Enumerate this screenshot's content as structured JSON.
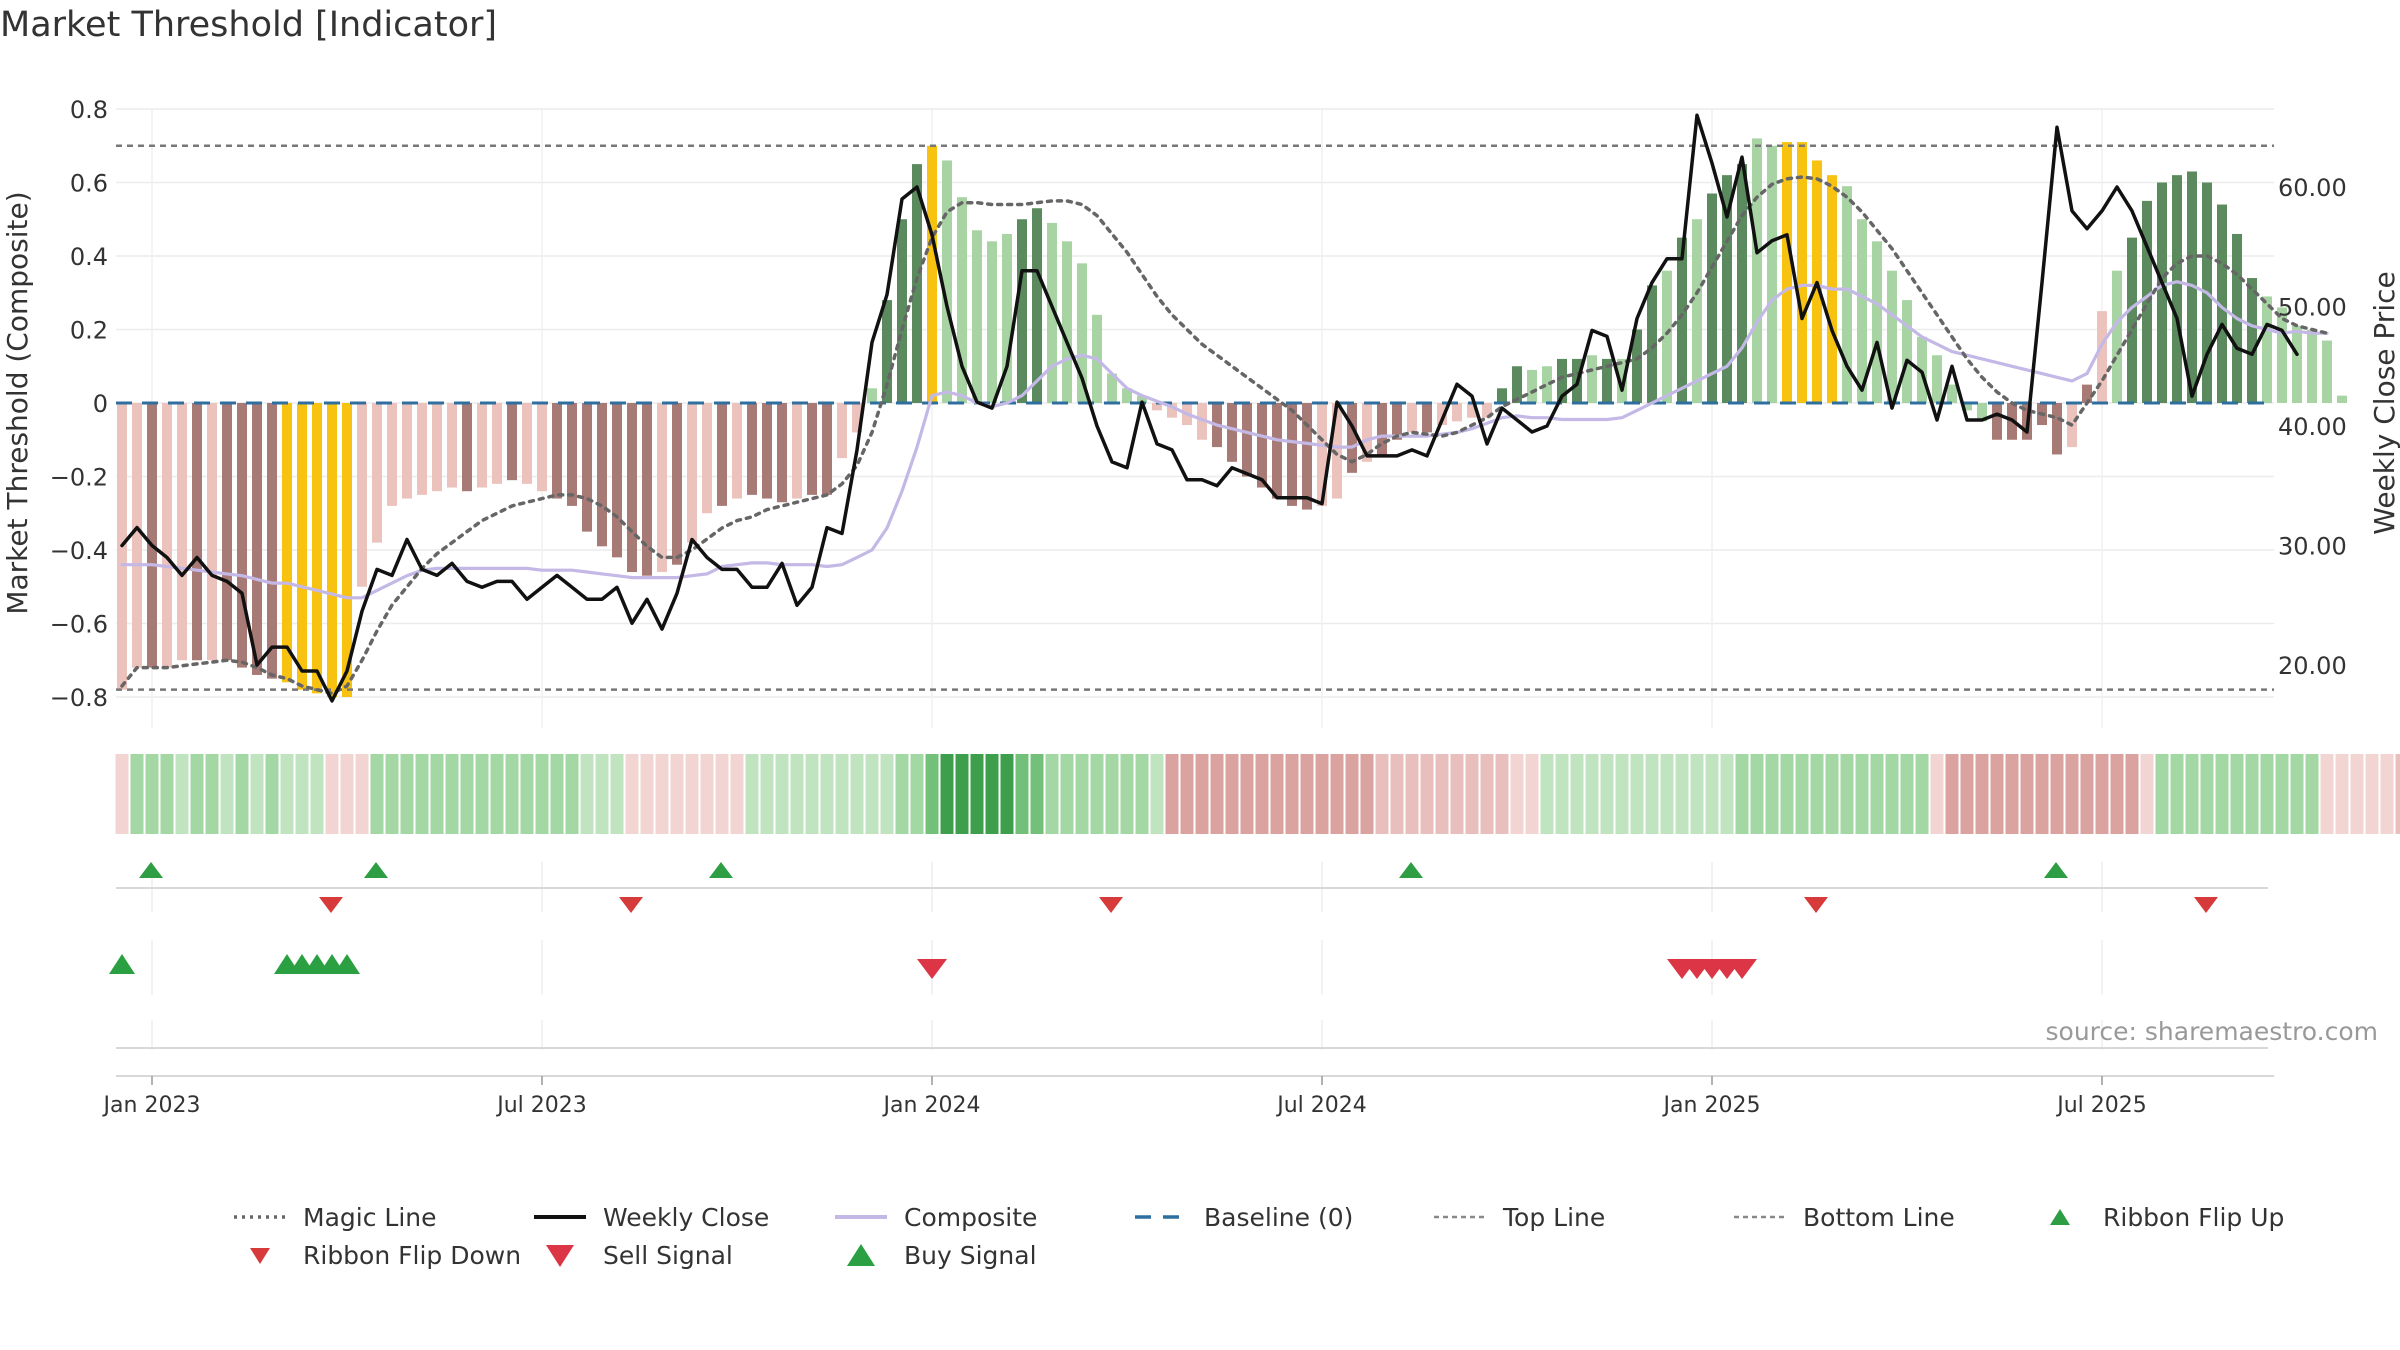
{
  "title": "Market Threshold [Indicator]",
  "source": "source: sharemaestro.com",
  "colors": {
    "magic_line": "#666666",
    "weekly_close": "#111111",
    "composite": "#c3b8e6",
    "baseline": "#2f6f9f",
    "threshold_lines": "#777777",
    "bar_pos_strong": "#5a8a5e",
    "bar_pos_weak": "#a8d4a4",
    "bar_neg_strong": "#a77a76",
    "bar_neg_weak": "#ecc2bd",
    "bar_extreme": "#f8c211",
    "ribbon_up": "#2e9e44",
    "ribbon_down": "#d63a3a",
    "sell": "#dc3545",
    "buy": "#2aa043"
  },
  "chart_data": {
    "type": "bar",
    "title": "Market Threshold [Indicator]",
    "ylabel": "Market Threshold (Composite)",
    "ylabel_right": "Weekly Close Price",
    "ylim": [
      -0.8,
      0.8
    ],
    "ylim_right": [
      15.0,
      70.0
    ],
    "yticks": [
      -0.8,
      -0.6,
      -0.4,
      -0.2,
      0,
      0.2,
      0.4,
      0.6,
      0.8
    ],
    "yticks_right": [
      "20.00",
      "30.00",
      "40.00",
      "50.00",
      "60.00"
    ],
    "x_tick_labels": [
      "Jan 2023",
      "Jul 2023",
      "Jan 2024",
      "Jul 2024",
      "Jan 2025",
      "Jul 2025"
    ],
    "x_tick_weeks": [
      2,
      28,
      54,
      80,
      106,
      132
    ],
    "grid": true,
    "top_line": 0.7,
    "bottom_line": -0.78,
    "baseline": 0,
    "weeks": 145,
    "composite_bars": [
      -0.78,
      -0.72,
      -0.72,
      -0.72,
      -0.7,
      -0.7,
      -0.7,
      -0.7,
      -0.72,
      -0.74,
      -0.75,
      -0.76,
      -0.78,
      -0.79,
      -0.8,
      -0.8,
      -0.5,
      -0.38,
      -0.28,
      -0.26,
      -0.25,
      -0.24,
      -0.23,
      -0.24,
      -0.23,
      -0.22,
      -0.21,
      -0.22,
      -0.24,
      -0.26,
      -0.28,
      -0.35,
      -0.39,
      -0.42,
      -0.46,
      -0.47,
      -0.46,
      -0.44,
      -0.38,
      -0.3,
      -0.28,
      -0.26,
      -0.25,
      -0.26,
      -0.27,
      -0.26,
      -0.25,
      -0.25,
      -0.15,
      -0.08,
      0.04,
      0.28,
      0.5,
      0.65,
      0.7,
      0.66,
      0.56,
      0.47,
      0.44,
      0.46,
      0.5,
      0.53,
      0.49,
      0.44,
      0.38,
      0.24,
      0.08,
      0.04,
      0.02,
      -0.02,
      -0.04,
      -0.06,
      -0.1,
      -0.12,
      -0.16,
      -0.2,
      -0.23,
      -0.26,
      -0.28,
      -0.29,
      -0.28,
      -0.26,
      -0.19,
      -0.16,
      -0.14,
      -0.1,
      -0.08,
      -0.08,
      -0.06,
      -0.05,
      -0.04,
      -0.04,
      0.04,
      0.1,
      0.09,
      0.1,
      0.12,
      0.12,
      0.13,
      0.12,
      0.12,
      0.2,
      0.32,
      0.36,
      0.45,
      0.5,
      0.57,
      0.62,
      0.65,
      0.72,
      0.7,
      0.71,
      0.71,
      0.66,
      0.62,
      0.59,
      0.5,
      0.44,
      0.36,
      0.28,
      0.18,
      0.13,
      0.05,
      -0.02,
      -0.05,
      -0.1,
      -0.1,
      -0.1,
      -0.06,
      -0.14,
      -0.12,
      0.05,
      0.25,
      0.36,
      0.45,
      0.55,
      0.6,
      0.62,
      0.63,
      0.6,
      0.54,
      0.46,
      0.34,
      0.29,
      0.26,
      0.21,
      0.2,
      0.17,
      0.02
    ],
    "bar_categories": [
      "weak_neg",
      "weak_neg",
      "strong_neg",
      "weak_neg",
      "weak_neg",
      "strong_neg",
      "weak_neg",
      "strong_neg",
      "strong_neg",
      "strong_neg",
      "strong_neg",
      "extreme",
      "extreme",
      "extreme",
      "extreme",
      "extreme",
      "weak_neg",
      "weak_neg",
      "weak_neg",
      "weak_neg",
      "weak_neg",
      "weak_neg",
      "weak_neg",
      "strong_neg",
      "weak_neg",
      "weak_neg",
      "strong_neg",
      "weak_neg",
      "weak_neg",
      "strong_neg",
      "strong_neg",
      "strong_neg",
      "strong_neg",
      "strong_neg",
      "strong_neg",
      "strong_neg",
      "weak_neg",
      "strong_neg",
      "weak_neg",
      "weak_neg",
      "strong_neg",
      "weak_neg",
      "strong_neg",
      "strong_neg",
      "strong_neg",
      "weak_neg",
      "strong_neg",
      "strong_neg",
      "weak_neg",
      "weak_neg",
      "weak_pos",
      "strong_pos",
      "strong_pos",
      "strong_pos",
      "extreme",
      "weak_pos",
      "weak_pos",
      "weak_pos",
      "weak_pos",
      "weak_pos",
      "strong_pos",
      "strong_pos",
      "weak_pos",
      "weak_pos",
      "weak_pos",
      "weak_pos",
      "weak_pos",
      "weak_pos",
      "weak_pos",
      "weak_neg",
      "weak_neg",
      "weak_neg",
      "weak_neg",
      "strong_neg",
      "strong_neg",
      "strong_neg",
      "strong_neg",
      "strong_neg",
      "strong_neg",
      "strong_neg",
      "weak_neg",
      "weak_neg",
      "strong_neg",
      "weak_neg",
      "strong_neg",
      "strong_neg",
      "weak_neg",
      "strong_neg",
      "weak_neg",
      "weak_neg",
      "weak_neg",
      "weak_neg",
      "strong_pos",
      "strong_pos",
      "weak_pos",
      "weak_pos",
      "strong_pos",
      "strong_pos",
      "weak_pos",
      "strong_pos",
      "weak_pos",
      "strong_pos",
      "strong_pos",
      "weak_pos",
      "strong_pos",
      "weak_pos",
      "strong_pos",
      "strong_pos",
      "strong_pos",
      "weak_pos",
      "weak_pos",
      "extreme",
      "extreme",
      "extreme",
      "extreme",
      "weak_pos",
      "weak_pos",
      "weak_pos",
      "weak_pos",
      "weak_pos",
      "weak_pos",
      "weak_pos",
      "weak_pos",
      "weak_pos",
      "weak_pos",
      "strong_neg",
      "strong_neg",
      "strong_neg",
      "strong_neg",
      "strong_neg",
      "weak_neg",
      "strong_neg",
      "weak_neg",
      "weak_pos",
      "strong_pos",
      "strong_pos",
      "strong_pos",
      "strong_pos",
      "strong_pos",
      "strong_pos",
      "strong_pos",
      "strong_pos",
      "strong_pos",
      "weak_pos",
      "weak_pos",
      "weak_pos",
      "weak_pos",
      "weak_pos",
      "weak_pos",
      "weak_pos",
      "weak_pos",
      "weak_pos"
    ],
    "series": [
      {
        "name": "Weekly Close",
        "axis": "right",
        "values": [
          30.0,
          31.5,
          30.0,
          29.0,
          27.5,
          29.0,
          27.5,
          27.0,
          26.0,
          20.0,
          21.5,
          21.5,
          19.5,
          19.5,
          17.0,
          19.5,
          24.5,
          28.0,
          27.5,
          30.5,
          28.0,
          27.5,
          28.5,
          27.0,
          26.5,
          27.0,
          27.0,
          25.5,
          26.5,
          27.5,
          26.5,
          25.5,
          25.5,
          26.5,
          23.5,
          25.5,
          23.0,
          26.0,
          30.5,
          29.0,
          28.0,
          28.0,
          26.5,
          26.5,
          28.5,
          25.0,
          26.5,
          31.5,
          31.0,
          38.0,
          47.0,
          51.0,
          59.0,
          60.0,
          56.0,
          50.0,
          45.0,
          42.0,
          41.5,
          45.0,
          53.0,
          53.0,
          50.0,
          47.0,
          44.0,
          40.0,
          37.0,
          36.5,
          42.0,
          38.5,
          38.0,
          35.5,
          35.5,
          35.0,
          36.5,
          36.0,
          35.5,
          34.0,
          34.0,
          34.0,
          33.5,
          42.0,
          40.0,
          37.5,
          37.5,
          37.5,
          38.0,
          37.5,
          40.5,
          43.5,
          42.5,
          38.5,
          41.5,
          40.5,
          39.5,
          40.0,
          42.5,
          43.5,
          48.0,
          47.5,
          43.0,
          49.0,
          52.0,
          54.0,
          54.0,
          66.0,
          62.0,
          57.5,
          62.5,
          54.5,
          55.5,
          56.0,
          49.0,
          52.0,
          48.0,
          45.0,
          43.0,
          47.0,
          41.5,
          45.5,
          44.5,
          40.5,
          45.0,
          40.5,
          40.5,
          41.0,
          40.5,
          39.5,
          52.0,
          65.0,
          58.0,
          56.5,
          58.0,
          60.0,
          58.0,
          55.0,
          52.0,
          49.0,
          42.5,
          46.0,
          48.5,
          46.5,
          46.0,
          48.5,
          48.0,
          46.0
        ]
      },
      {
        "name": "Magic Line",
        "axis": "left",
        "values": [
          -0.77,
          -0.72,
          -0.72,
          -0.72,
          -0.715,
          -0.71,
          -0.705,
          -0.7,
          -0.705,
          -0.72,
          -0.74,
          -0.75,
          -0.77,
          -0.78,
          -0.79,
          -0.77,
          -0.7,
          -0.62,
          -0.55,
          -0.5,
          -0.45,
          -0.41,
          -0.38,
          -0.35,
          -0.32,
          -0.3,
          -0.28,
          -0.27,
          -0.26,
          -0.25,
          -0.25,
          -0.26,
          -0.28,
          -0.31,
          -0.35,
          -0.39,
          -0.42,
          -0.42,
          -0.4,
          -0.37,
          -0.34,
          -0.32,
          -0.31,
          -0.29,
          -0.28,
          -0.27,
          -0.26,
          -0.25,
          -0.22,
          -0.17,
          -0.08,
          0.05,
          0.2,
          0.34,
          0.45,
          0.52,
          0.545,
          0.545,
          0.54,
          0.54,
          0.54,
          0.545,
          0.55,
          0.55,
          0.54,
          0.51,
          0.46,
          0.41,
          0.35,
          0.29,
          0.24,
          0.2,
          0.16,
          0.13,
          0.1,
          0.07,
          0.04,
          0.01,
          -0.02,
          -0.06,
          -0.1,
          -0.14,
          -0.16,
          -0.14,
          -0.11,
          -0.09,
          -0.08,
          -0.085,
          -0.09,
          -0.08,
          -0.06,
          -0.04,
          -0.01,
          0.01,
          0.03,
          0.05,
          0.07,
          0.08,
          0.09,
          0.1,
          0.11,
          0.12,
          0.15,
          0.19,
          0.24,
          0.3,
          0.37,
          0.44,
          0.51,
          0.56,
          0.595,
          0.61,
          0.615,
          0.61,
          0.59,
          0.56,
          0.52,
          0.47,
          0.42,
          0.36,
          0.3,
          0.24,
          0.18,
          0.12,
          0.07,
          0.03,
          0.0,
          -0.02,
          -0.03,
          -0.04,
          -0.06,
          0.0,
          0.06,
          0.13,
          0.2,
          0.27,
          0.34,
          0.38,
          0.4,
          0.4,
          0.38,
          0.35,
          0.31,
          0.27,
          0.23,
          0.21,
          0.2,
          0.19
        ]
      },
      {
        "name": "Composite",
        "axis": "left",
        "values": [
          -0.44,
          -0.44,
          -0.44,
          -0.445,
          -0.45,
          -0.455,
          -0.46,
          -0.465,
          -0.47,
          -0.48,
          -0.49,
          -0.49,
          -0.5,
          -0.51,
          -0.52,
          -0.53,
          -0.53,
          -0.51,
          -0.49,
          -0.47,
          -0.455,
          -0.45,
          -0.45,
          -0.45,
          -0.45,
          -0.45,
          -0.45,
          -0.45,
          -0.455,
          -0.455,
          -0.455,
          -0.46,
          -0.465,
          -0.47,
          -0.475,
          -0.475,
          -0.475,
          -0.475,
          -0.47,
          -0.465,
          -0.445,
          -0.44,
          -0.435,
          -0.435,
          -0.44,
          -0.44,
          -0.44,
          -0.445,
          -0.44,
          -0.42,
          -0.4,
          -0.34,
          -0.24,
          -0.12,
          0.02,
          0.03,
          0.02,
          0.0,
          -0.01,
          0.0,
          0.02,
          0.06,
          0.1,
          0.12,
          0.13,
          0.12,
          0.08,
          0.04,
          0.02,
          0.005,
          -0.01,
          -0.03,
          -0.045,
          -0.06,
          -0.07,
          -0.08,
          -0.09,
          -0.1,
          -0.105,
          -0.11,
          -0.115,
          -0.12,
          -0.12,
          -0.1,
          -0.09,
          -0.09,
          -0.09,
          -0.09,
          -0.085,
          -0.08,
          -0.07,
          -0.055,
          -0.04,
          -0.035,
          -0.04,
          -0.04,
          -0.045,
          -0.045,
          -0.045,
          -0.045,
          -0.04,
          -0.02,
          0.0,
          0.02,
          0.04,
          0.06,
          0.08,
          0.1,
          0.15,
          0.22,
          0.28,
          0.31,
          0.32,
          0.32,
          0.31,
          0.31,
          0.29,
          0.27,
          0.24,
          0.21,
          0.18,
          0.16,
          0.14,
          0.13,
          0.12,
          0.11,
          0.1,
          0.09,
          0.08,
          0.07,
          0.06,
          0.08,
          0.16,
          0.22,
          0.26,
          0.29,
          0.32,
          0.33,
          0.32,
          0.3,
          0.26,
          0.23,
          0.21,
          0.2,
          0.19,
          0.195,
          0.19,
          0.19
        ]
      }
    ],
    "ribbon": [
      "rw",
      "rg2",
      "rg2",
      "rg2",
      "rg1",
      "rg2",
      "rg2",
      "rg1",
      "rg2",
      "rg1",
      "rg2",
      "rg1",
      "rg1",
      "rg1",
      "rw",
      "rw",
      "rw",
      "rg2",
      "rg2",
      "rg2",
      "rg2",
      "rg2",
      "rg2",
      "rg2",
      "rg2",
      "rg2",
      "rg2",
      "rg2",
      "rg2",
      "rg2",
      "rg2",
      "rg1",
      "rg1",
      "rg1",
      "rw",
      "rw",
      "rw",
      "rw",
      "rw",
      "rw",
      "rw",
      "rw",
      "rg1",
      "rg1",
      "rg1",
      "rg1",
      "rg1",
      "rg1",
      "rg1",
      "rg1",
      "rg1",
      "rg1",
      "rg2",
      "rg2",
      "rg3",
      "rg4",
      "rg4",
      "rg4",
      "rg4",
      "rg4",
      "rg3",
      "rg3",
      "rg2",
      "rg2",
      "rg2",
      "rg2",
      "rg2",
      "rg2",
      "rg2",
      "rg1",
      "rr2",
      "rr2",
      "rr2",
      "rr2",
      "rr2",
      "rr2",
      "rr2",
      "rr2",
      "rr2",
      "rr2",
      "rr2",
      "rr2",
      "rr2",
      "rr2",
      "rr1",
      "rr1",
      "rr1",
      "rr1",
      "rr1",
      "rr1",
      "rr1",
      "rr1",
      "rr1",
      "rw",
      "rw",
      "rg1",
      "rg1",
      "rg1",
      "rg1",
      "rg1",
      "rg1",
      "rg1",
      "rg1",
      "rg1",
      "rg1",
      "rg1",
      "rg1",
      "rg1",
      "rg2",
      "rg2",
      "rg2",
      "rg2",
      "rg2",
      "rg2",
      "rg2",
      "rg2",
      "rg2",
      "rg2",
      "rg2",
      "rg2",
      "rg2",
      "rw",
      "rr2",
      "rr2",
      "rr2",
      "rr2",
      "rr2",
      "rr2",
      "rr2",
      "rr2",
      "rr2",
      "rr2",
      "rr2",
      "rr2",
      "rr2",
      "rw",
      "rg2",
      "rg2",
      "rg2",
      "rg2",
      "rg2",
      "rg2",
      "rg2",
      "rg2",
      "rg2",
      "rg2",
      "rg2",
      "rw",
      "rw",
      "rw",
      "rw",
      "rw",
      "rr1"
    ],
    "ribbon_flip_up": [
      1,
      16,
      39,
      85,
      128
    ],
    "ribbon_flip_down": [
      13,
      33,
      65,
      112,
      138
    ],
    "buy_signal": [
      0,
      11,
      12,
      13,
      14,
      15
    ],
    "sell_signal": [
      53,
      103,
      104,
      105,
      106,
      107
    ]
  },
  "legend": [
    {
      "label": "Magic Line",
      "symbol": "dotted",
      "color": "#666666"
    },
    {
      "label": "Weekly Close",
      "symbol": "line",
      "color": "#111111"
    },
    {
      "label": "Composite",
      "symbol": "line",
      "color": "#c3b8e6"
    },
    {
      "label": "Baseline (0)",
      "symbol": "dashed",
      "color": "#2f6f9f"
    },
    {
      "label": "Top Line",
      "symbol": "fine-dashed",
      "color": "#888888"
    },
    {
      "label": "Bottom Line",
      "symbol": "fine-dashed",
      "color": "#888888"
    },
    {
      "label": "Ribbon Flip Up",
      "symbol": "triangle-up-small",
      "color": "#2e9e44"
    },
    {
      "label": "Ribbon Flip Down",
      "symbol": "triangle-down-small",
      "color": "#d63a3a"
    },
    {
      "label": "Sell Signal",
      "symbol": "triangle-down",
      "color": "#dc3545"
    },
    {
      "label": "Buy Signal",
      "symbol": "triangle-up",
      "color": "#2aa043"
    }
  ]
}
